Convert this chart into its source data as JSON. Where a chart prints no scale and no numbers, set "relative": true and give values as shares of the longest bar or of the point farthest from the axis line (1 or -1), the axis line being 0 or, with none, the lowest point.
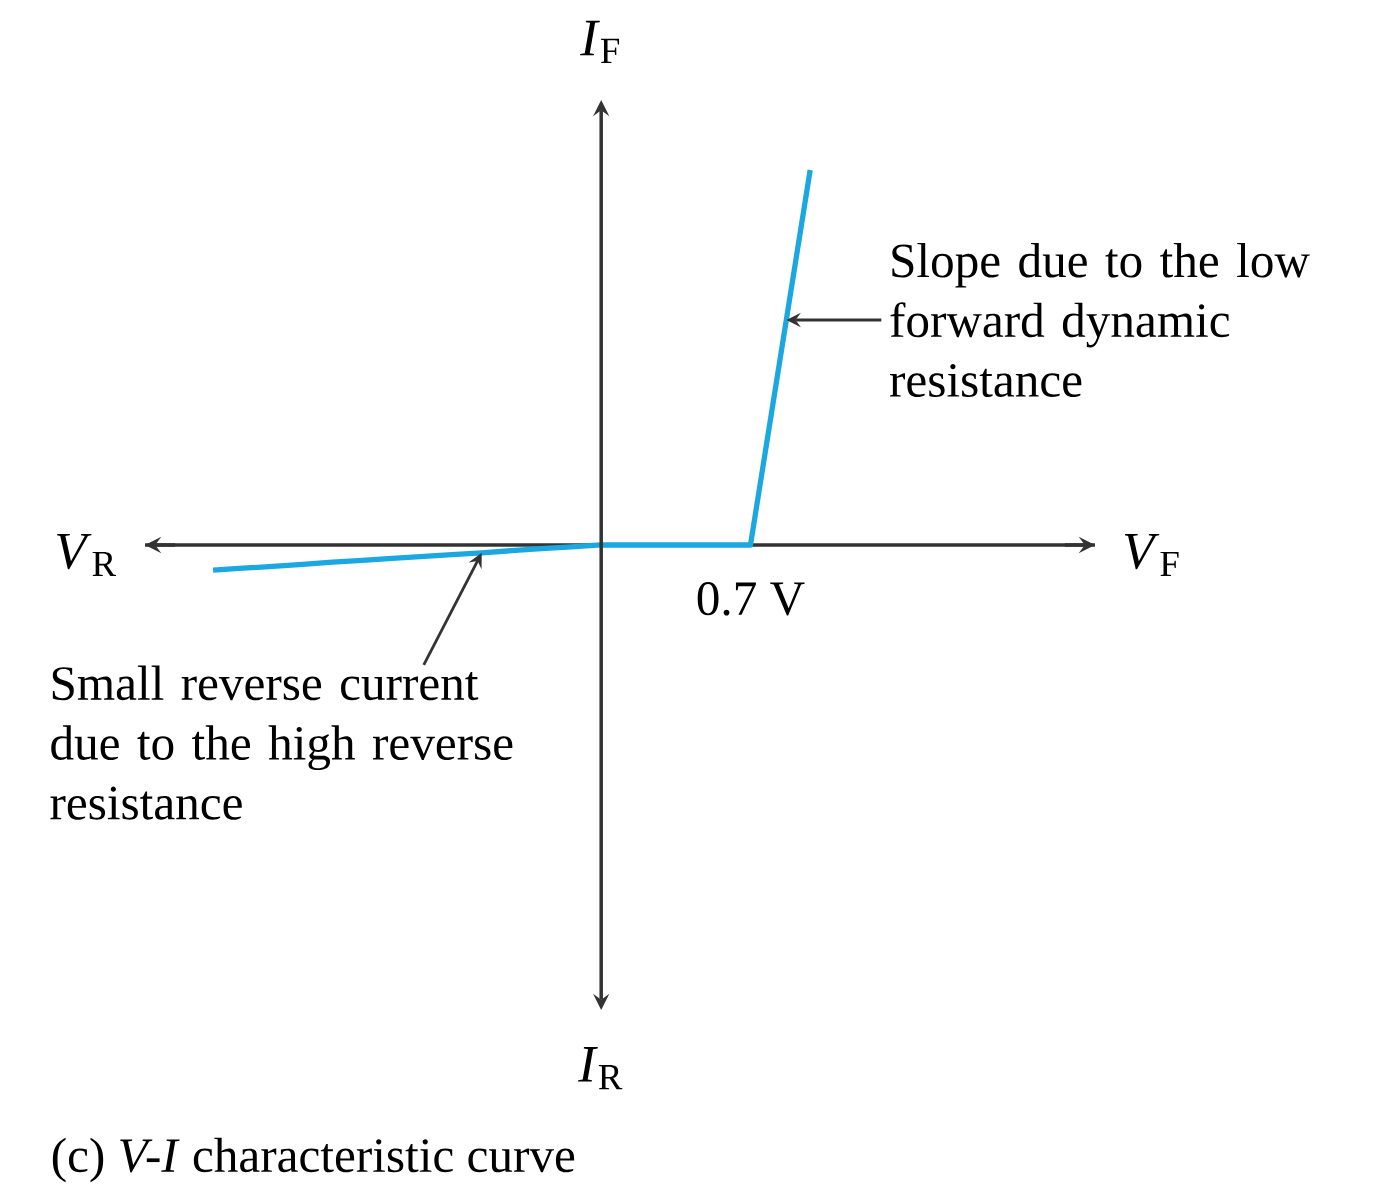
{
  "chart_data": {
    "type": "line",
    "title": "(c) *V-I* characteristic curve",
    "categories": [
      null,
      null,
      null,
      null,
      null,
      null,
      null,
      null,
      null,
      null,
      null,
      null,
      null,
      null,
      null,
      null,
      null,
      null,
      null,
      null,
      null
    ],
    "values": [
      -0.067,
      -0.062,
      -0.057,
      -0.052,
      -0.046,
      -0.041,
      -0.036,
      -0.031,
      -0.026,
      -0.021,
      -0.015,
      -0.01,
      -0.005,
      0,
      0,
      0,
      0,
      0,
      0,
      0.5,
      1
    ],
    "color": "#1ba8e0",
    "relative": true,
    "annotations": [
      "*V*$_{R}$",
      "*I*$_{R}$",
      "Slope due to the low forward dynamic resistance",
      "Small reverse current due to the high reverse resistance",
      "0.7 V",
      "*V*$_{F}$",
      "*I*$_{F}$"
    ]
  }
}
